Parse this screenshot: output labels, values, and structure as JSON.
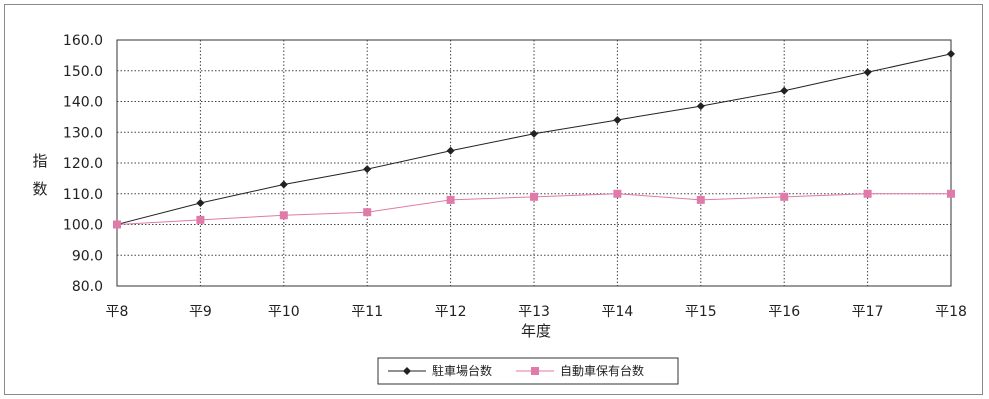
{
  "chart_data": {
    "type": "line",
    "categories": [
      "平8",
      "平9",
      "平10",
      "平11",
      "平12",
      "平13",
      "平14",
      "平15",
      "平16",
      "平17",
      "平18"
    ],
    "xlabel": "年度",
    "ylabel": "指数",
    "ylim": [
      80,
      160
    ],
    "yticks": [
      "80.0",
      "90.0",
      "100.0",
      "110.0",
      "120.0",
      "130.0",
      "140.0",
      "150.0",
      "160.0"
    ],
    "grid": true,
    "legend_position": "bottom",
    "series": [
      {
        "name": "駐車場台数",
        "color": "#222222",
        "marker": "diamond",
        "values": [
          100.0,
          107.0,
          113.0,
          118.0,
          124.0,
          129.5,
          134.0,
          138.5,
          143.5,
          149.5,
          155.5
        ]
      },
      {
        "name": "自動車保有台数",
        "color": "#e07aa8",
        "marker": "square",
        "values": [
          100.0,
          101.5,
          103.0,
          104.0,
          108.0,
          109.0,
          110.0,
          108.0,
          109.0,
          110.0,
          110.0
        ]
      }
    ]
  }
}
